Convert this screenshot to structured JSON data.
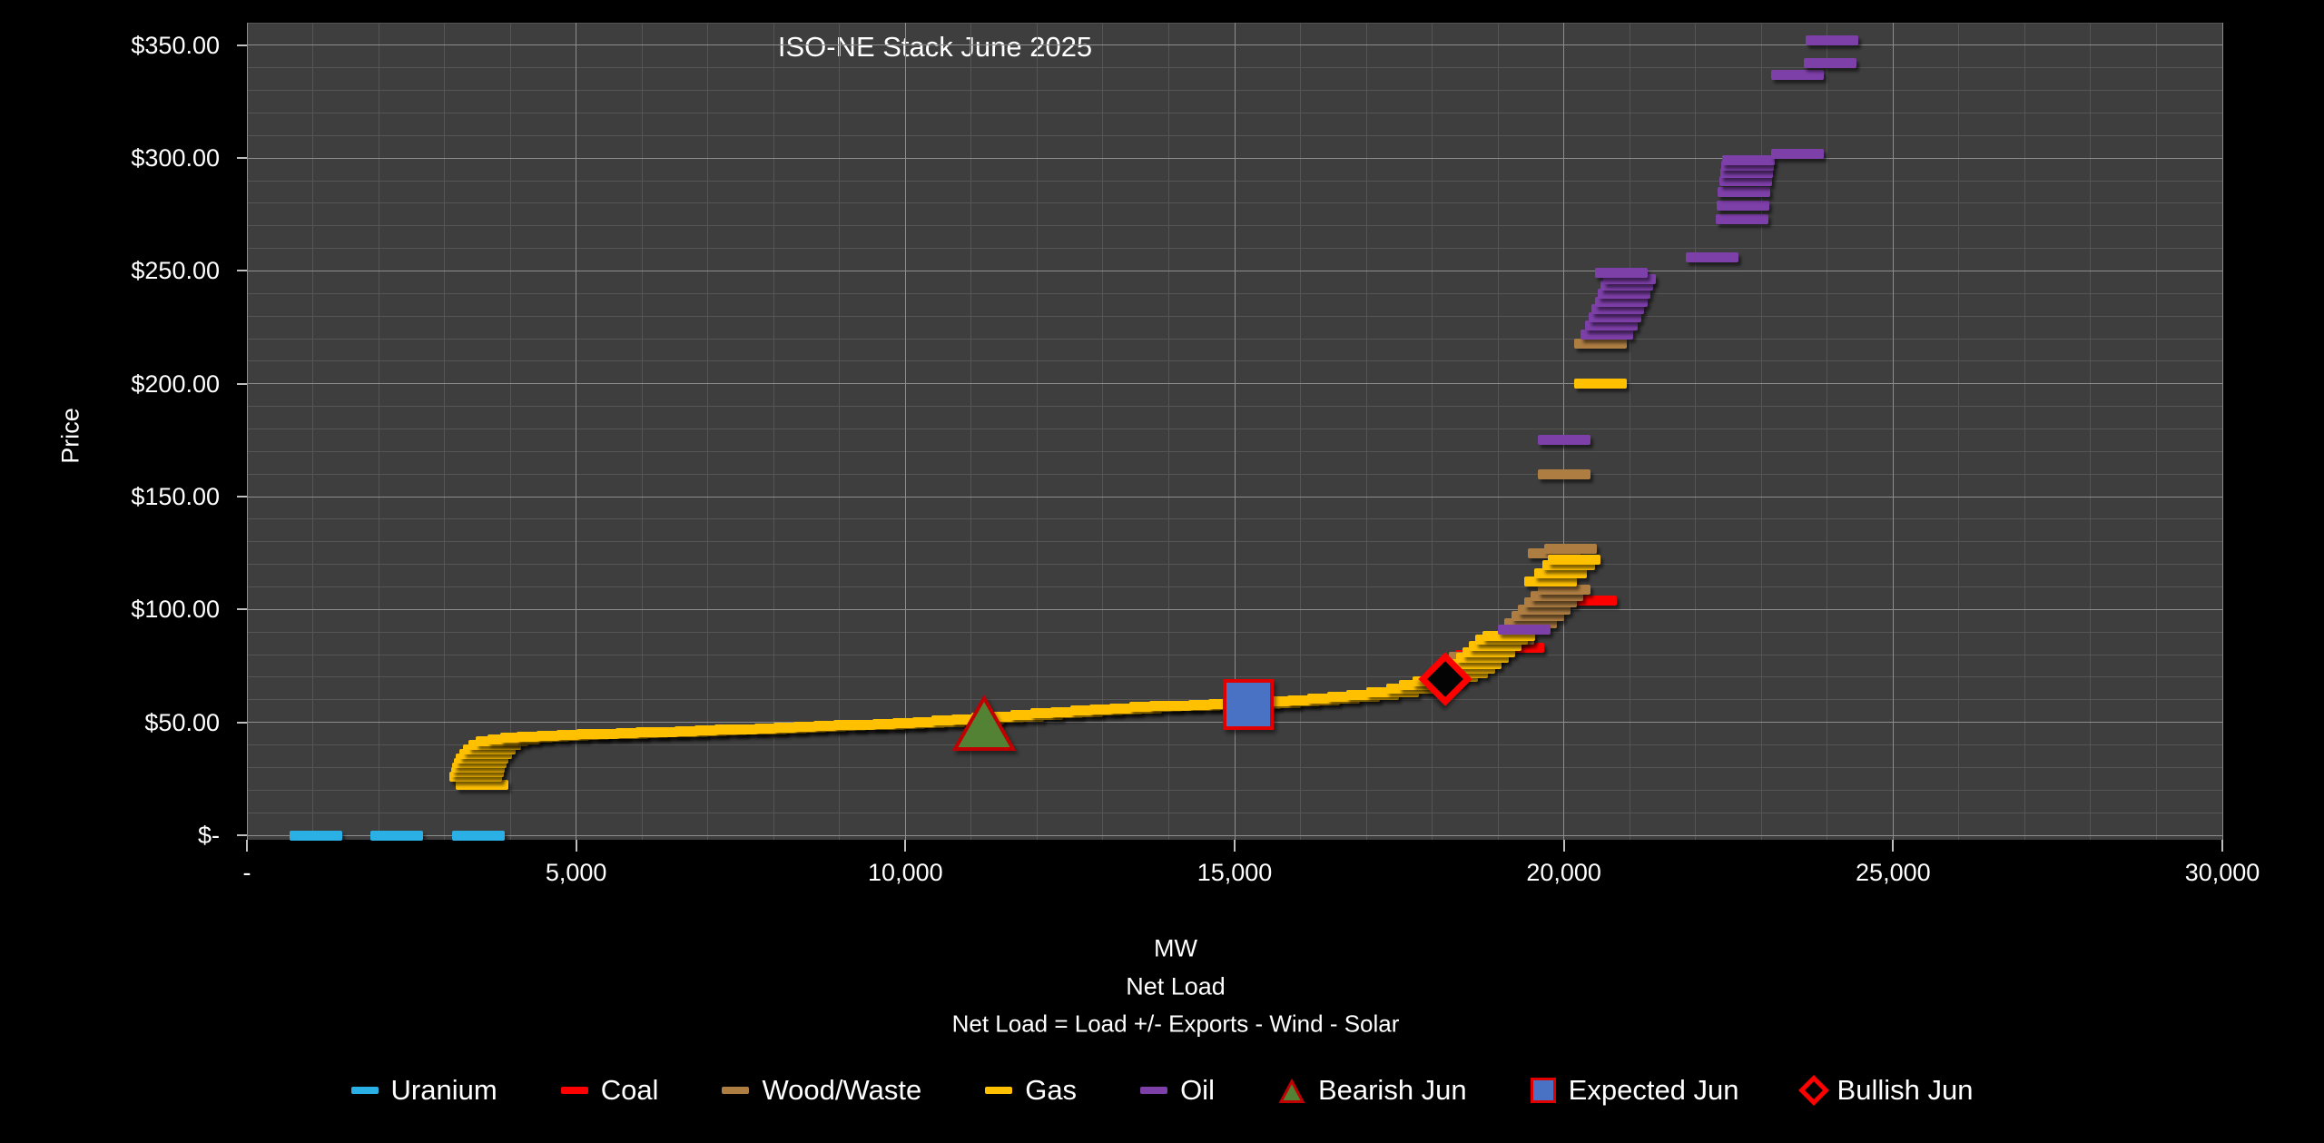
{
  "title": "ISO-NE Stack June 2025",
  "axes": {
    "y": {
      "title": "Price",
      "min": -2,
      "max": 360,
      "minor_step": 10,
      "major_step": 50,
      "tick_labels": [
        {
          "v": 350,
          "label": "$350.00"
        },
        {
          "v": 300,
          "label": "$300.00"
        },
        {
          "v": 250,
          "label": "$250.00"
        },
        {
          "v": 200,
          "label": "$200.00"
        },
        {
          "v": 150,
          "label": "$150.00"
        },
        {
          "v": 100,
          "label": "$100.00"
        },
        {
          "v": 50,
          "label": "$50.00"
        },
        {
          "v": 0,
          "label": "$-"
        }
      ]
    },
    "x": {
      "title_lines": [
        "MW",
        "Net Load",
        "Net Load = Load +/- Exports  - Wind - Solar"
      ],
      "min": 0,
      "max": 30000,
      "minor_step": 1000,
      "major_step": 5000,
      "tick_labels": [
        {
          "v": 0,
          "label": "-"
        },
        {
          "v": 5000,
          "label": "5,000"
        },
        {
          "v": 10000,
          "label": "10,000"
        },
        {
          "v": 15000,
          "label": "15,000"
        },
        {
          "v": 20000,
          "label": "20,000"
        },
        {
          "v": 25000,
          "label": "25,000"
        },
        {
          "v": 30000,
          "label": "30,000"
        }
      ]
    }
  },
  "colors": {
    "page_bg": "#000000",
    "plot_bg": "#3e3e3e",
    "grid_minor": "#555555",
    "grid_major": "#8d8d8d",
    "text": "#ffffff",
    "uranium": "#2bb0e6",
    "coal": "#fe0000",
    "wood_waste": "#ad7d42",
    "gas": "#ffc000",
    "oil": "#7d3fa8",
    "bearish_fill": "#548235",
    "bearish_border": "#c00000",
    "expected_fill": "#4a72c4",
    "expected_border": "#e00000",
    "bullish_fill": "#040404",
    "bullish_border": "#fe0000"
  },
  "legend": [
    {
      "label": "Uranium",
      "marker": "dash",
      "color": "#2bb0e6"
    },
    {
      "label": "Coal",
      "marker": "dash",
      "color": "#fe0000"
    },
    {
      "label": "Wood/Waste",
      "marker": "dash",
      "color": "#ad7d42"
    },
    {
      "label": "Gas",
      "marker": "dash",
      "color": "#ffc000"
    },
    {
      "label": "Oil",
      "marker": "dash",
      "color": "#7d3fa8"
    },
    {
      "label": "Bearish Jun",
      "marker": "triangle",
      "color": "#548235"
    },
    {
      "label": "Expected Jun",
      "marker": "square",
      "color": "#4a72c4"
    },
    {
      "label": "Bullish Jun",
      "marker": "diamond",
      "color": "#000000"
    }
  ],
  "chart_data": {
    "type": "scatter",
    "title": "ISO-NE Stack June 2025",
    "xlabel": "MW (Net Load)",
    "ylabel": "Price",
    "xlim": [
      0,
      30000
    ],
    "ylim": [
      -2,
      360
    ],
    "grid": "on",
    "legend_position": "bottom",
    "dash_width_mw": 800,
    "series": [
      {
        "name": "Uranium",
        "marker": "dash",
        "color": "#2bb0e6",
        "points": [
          [
            1050,
            0
          ],
          [
            2280,
            0
          ],
          [
            3520,
            0
          ]
        ]
      },
      {
        "name": "Coal",
        "marker": "dash",
        "color": "#fe0000",
        "points": [
          [
            18750,
            80
          ],
          [
            19300,
            83
          ],
          [
            20400,
            104
          ]
        ]
      },
      {
        "name": "Wood/Waste",
        "marker": "dash",
        "color": "#ad7d42",
        "points": [
          [
            18650,
            79
          ],
          [
            19150,
            86.5
          ],
          [
            19500,
            94
          ],
          [
            19600,
            97
          ],
          [
            19700,
            100
          ],
          [
            19800,
            103
          ],
          [
            19900,
            106
          ],
          [
            20000,
            109
          ],
          [
            19850,
            125
          ],
          [
            20100,
            127
          ],
          [
            20000,
            160
          ],
          [
            20550,
            218
          ]
        ]
      },
      {
        "name": "Gas",
        "marker": "dash",
        "color": "#ffc000",
        "points": [
          [
            3575,
            22.5
          ],
          [
            3480,
            26
          ],
          [
            3500,
            28
          ],
          [
            3520,
            30
          ],
          [
            3545,
            32
          ],
          [
            3575,
            34
          ],
          [
            3620,
            36
          ],
          [
            3680,
            38
          ],
          [
            3760,
            40
          ],
          [
            3880,
            41.5
          ],
          [
            4050,
            42.5
          ],
          [
            4250,
            43.2
          ],
          [
            4500,
            43.8
          ],
          [
            4800,
            44.2
          ],
          [
            5100,
            44.5
          ],
          [
            5400,
            44.8
          ],
          [
            5700,
            45
          ],
          [
            6000,
            45.3
          ],
          [
            6300,
            45.5
          ],
          [
            6600,
            45.8
          ],
          [
            6900,
            46
          ],
          [
            7200,
            46.3
          ],
          [
            7500,
            46.7
          ],
          [
            7800,
            47
          ],
          [
            8100,
            47.3
          ],
          [
            8400,
            47.7
          ],
          [
            8700,
            48
          ],
          [
            9000,
            48.3
          ],
          [
            9300,
            48.7
          ],
          [
            9600,
            49
          ],
          [
            9900,
            49.4
          ],
          [
            10200,
            49.8
          ],
          [
            10500,
            50.2
          ],
          [
            10800,
            50.7
          ],
          [
            11100,
            51.2
          ],
          [
            11400,
            52
          ],
          [
            11700,
            52.7
          ],
          [
            12000,
            53.4
          ],
          [
            12300,
            54
          ],
          [
            12600,
            54.6
          ],
          [
            12900,
            55.2
          ],
          [
            13200,
            55.8
          ],
          [
            13500,
            56.3
          ],
          [
            13800,
            56.8
          ],
          [
            14100,
            57.2
          ],
          [
            14400,
            57.5
          ],
          [
            14700,
            57.8
          ],
          [
            15000,
            58
          ],
          [
            15300,
            58.3
          ],
          [
            15600,
            58.7
          ],
          [
            15900,
            59.2
          ],
          [
            16200,
            59.8
          ],
          [
            16500,
            60.5
          ],
          [
            16800,
            61.3
          ],
          [
            17100,
            62.3
          ],
          [
            17400,
            63.5
          ],
          [
            17700,
            65
          ],
          [
            17900,
            66.5
          ],
          [
            18100,
            68
          ],
          [
            18300,
            70
          ],
          [
            18450,
            72
          ],
          [
            18560,
            74
          ],
          [
            18660,
            76
          ],
          [
            18760,
            78.5
          ],
          [
            18860,
            81
          ],
          [
            18960,
            84
          ],
          [
            19060,
            86.5
          ],
          [
            19160,
            88.5
          ],
          [
            19800,
            112.5
          ],
          [
            19950,
            116
          ],
          [
            20080,
            119.5
          ],
          [
            20150,
            122
          ],
          [
            20550,
            200
          ]
        ]
      },
      {
        "name": "Oil",
        "marker": "dash",
        "color": "#7d3fa8",
        "points": [
          [
            19400,
            91
          ],
          [
            20000,
            175
          ],
          [
            20650,
            222
          ],
          [
            20720,
            226
          ],
          [
            20770,
            229.5
          ],
          [
            20820,
            233
          ],
          [
            20870,
            236.5
          ],
          [
            20920,
            240
          ],
          [
            20960,
            243.5
          ],
          [
            21000,
            246.5
          ],
          [
            20880,
            249
          ],
          [
            22250,
            256
          ],
          [
            22700,
            273
          ],
          [
            22720,
            279
          ],
          [
            22740,
            285
          ],
          [
            22760,
            290
          ],
          [
            22780,
            293.5
          ],
          [
            22790,
            296.5
          ],
          [
            22800,
            299
          ],
          [
            23550,
            302
          ],
          [
            23550,
            337
          ],
          [
            24050,
            342
          ],
          [
            24070,
            352
          ]
        ]
      },
      {
        "name": "Bearish Jun",
        "marker": "triangle",
        "color": "#548235",
        "border": "#c00000",
        "points": [
          [
            11200,
            50
          ]
        ]
      },
      {
        "name": "Expected Jun",
        "marker": "square",
        "color": "#4a72c4",
        "border": "#e00000",
        "points": [
          [
            15200,
            58
          ]
        ]
      },
      {
        "name": "Bullish Jun",
        "marker": "diamond",
        "color": "#040404",
        "border": "#fe0000",
        "points": [
          [
            18200,
            69
          ]
        ]
      }
    ]
  }
}
